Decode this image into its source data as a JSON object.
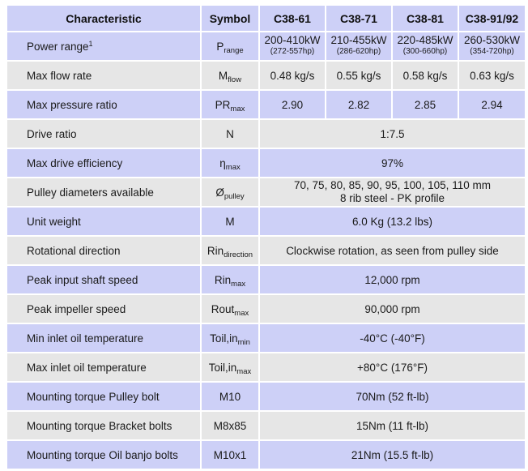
{
  "header": {
    "characteristic": "Characteristic",
    "symbol": "Symbol",
    "models": [
      "C38-61",
      "C38-71",
      "C38-81",
      "C38-91/92"
    ]
  },
  "rows": {
    "power": {
      "label": "Power range",
      "footnote": "1",
      "symbol_base": "P",
      "symbol_sub": "range",
      "values": [
        {
          "kw": "200-410kW",
          "hp": "(272-557hp)"
        },
        {
          "kw": "210-455kW",
          "hp": "(286-620hp)"
        },
        {
          "kw": "220-485kW",
          "hp": "(300-660hp)"
        },
        {
          "kw": "260-530kW",
          "hp": "(354-720hp)"
        }
      ]
    },
    "flow": {
      "label": "Max flow rate",
      "symbol_base": "M",
      "symbol_sub": "flow",
      "values": [
        "0.48 kg/s",
        "0.55 kg/s",
        "0.58 kg/s",
        "0.63 kg/s"
      ]
    },
    "pressure": {
      "label": "Max pressure ratio",
      "symbol_base": "PR",
      "symbol_sub": "max",
      "values": [
        "2.90",
        "2.82",
        "2.85",
        "2.94"
      ]
    },
    "drive_ratio": {
      "label": "Drive ratio",
      "symbol": "N",
      "value": "1:7.5"
    },
    "efficiency": {
      "label": "Max drive efficiency",
      "symbol_base": "η",
      "symbol_sub": "max",
      "value": "97%"
    },
    "pulley": {
      "label": "Pulley diameters available",
      "symbol_base": "Ø",
      "symbol_sub": "pulley",
      "line1": "70, 75, 80, 85, 90, 95, 100, 105, 110 mm",
      "line2": "8 rib steel - PK profile"
    },
    "weight": {
      "label": "Unit weight",
      "symbol": "M",
      "value": "6.0 Kg (13.2 lbs)"
    },
    "rotation": {
      "label": "Rotational direction",
      "symbol_base": "Rin",
      "symbol_sub": "direction",
      "value": "Clockwise rotation, as seen from pulley side"
    },
    "input_speed": {
      "label": "Peak input shaft speed",
      "symbol_base": "Rin",
      "symbol_sub": "max",
      "value": "12,000 rpm"
    },
    "impeller_speed": {
      "label": "Peak impeller speed",
      "symbol_base": "Rout",
      "symbol_sub": "max",
      "value": "90,000 rpm"
    },
    "min_oil": {
      "label": "Min inlet oil temperature",
      "symbol_base": "Toil,in",
      "symbol_sub": "min",
      "value": "-40°C (-40°F)"
    },
    "max_oil": {
      "label": "Max inlet oil temperature",
      "symbol_base": "Toil,in",
      "symbol_sub": "max",
      "value": "+80°C (176°F)"
    },
    "pulley_bolt": {
      "label": "Mounting torque Pulley bolt",
      "symbol": "M10",
      "value": "70Nm (52 ft-lb)"
    },
    "bracket_bolts": {
      "label": "Mounting torque Bracket bolts",
      "symbol": "M8x85",
      "value": "15Nm (11 ft-lb)"
    },
    "banjo_bolts": {
      "label": "Mounting torque Oil banjo bolts",
      "symbol": "M10x1",
      "value": "21Nm (15.5 ft-lb)"
    }
  }
}
